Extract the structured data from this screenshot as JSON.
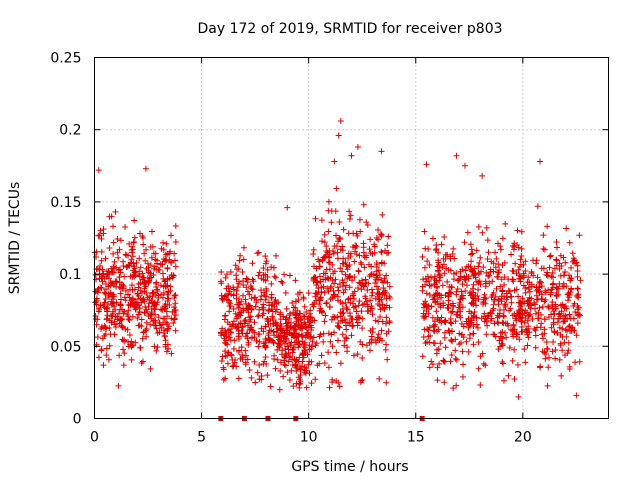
{
  "chart_data": {
    "type": "scatter",
    "title": "Day 172 of 2019, SRMTID for receiver p803",
    "xlabel": "GPS time / hours",
    "ylabel": "SRMTID / TECUs",
    "xlim": [
      0,
      24
    ],
    "ylim": [
      0,
      0.25
    ],
    "x_ticks": [
      0,
      5,
      10,
      15,
      20
    ],
    "x_tick_labels": [
      "0",
      "5",
      "10",
      "15",
      "20"
    ],
    "y_ticks": [
      0,
      0.05,
      0.1,
      0.15,
      0.2,
      0.25
    ],
    "y_tick_labels": [
      "0",
      "0.05",
      "0.1",
      "0.15",
      "0.2",
      "0.25"
    ],
    "grid": true,
    "marker": "plus",
    "series_color": "#e00000",
    "zero_points_x": [
      5.9,
      7.0,
      8.1,
      9.4,
      15.3
    ],
    "clusters": [
      {
        "x_range": [
          0.0,
          3.8
        ],
        "y_mean": 0.085,
        "y_spread": 0.025,
        "count": 520
      },
      {
        "x_range": [
          5.9,
          8.5
        ],
        "y_mean": 0.07,
        "y_spread": 0.022,
        "count": 320
      },
      {
        "x_range": [
          8.5,
          10.2
        ],
        "y_mean": 0.055,
        "y_spread": 0.018,
        "count": 260
      },
      {
        "x_range": [
          10.2,
          13.8
        ],
        "y_mean": 0.09,
        "y_spread": 0.03,
        "count": 430
      },
      {
        "x_range": [
          15.3,
          22.7
        ],
        "y_mean": 0.08,
        "y_spread": 0.024,
        "count": 820
      }
    ],
    "outliers": [
      {
        "x": 0.2,
        "y": 0.172
      },
      {
        "x": 2.4,
        "y": 0.173
      },
      {
        "x": 9.0,
        "y": 0.146
      },
      {
        "x": 11.5,
        "y": 0.206
      },
      {
        "x": 11.4,
        "y": 0.196
      },
      {
        "x": 12.3,
        "y": 0.188
      },
      {
        "x": 13.4,
        "y": 0.185
      },
      {
        "x": 11.2,
        "y": 0.178
      },
      {
        "x": 12.0,
        "y": 0.182
      },
      {
        "x": 15.5,
        "y": 0.176
      },
      {
        "x": 16.9,
        "y": 0.182
      },
      {
        "x": 17.3,
        "y": 0.175
      },
      {
        "x": 20.8,
        "y": 0.178
      },
      {
        "x": 18.1,
        "y": 0.168
      },
      {
        "x": 19.8,
        "y": 0.015
      },
      {
        "x": 22.5,
        "y": 0.016
      },
      {
        "x": 0.8,
        "y": 0.14
      },
      {
        "x": 20.7,
        "y": 0.147
      }
    ]
  }
}
